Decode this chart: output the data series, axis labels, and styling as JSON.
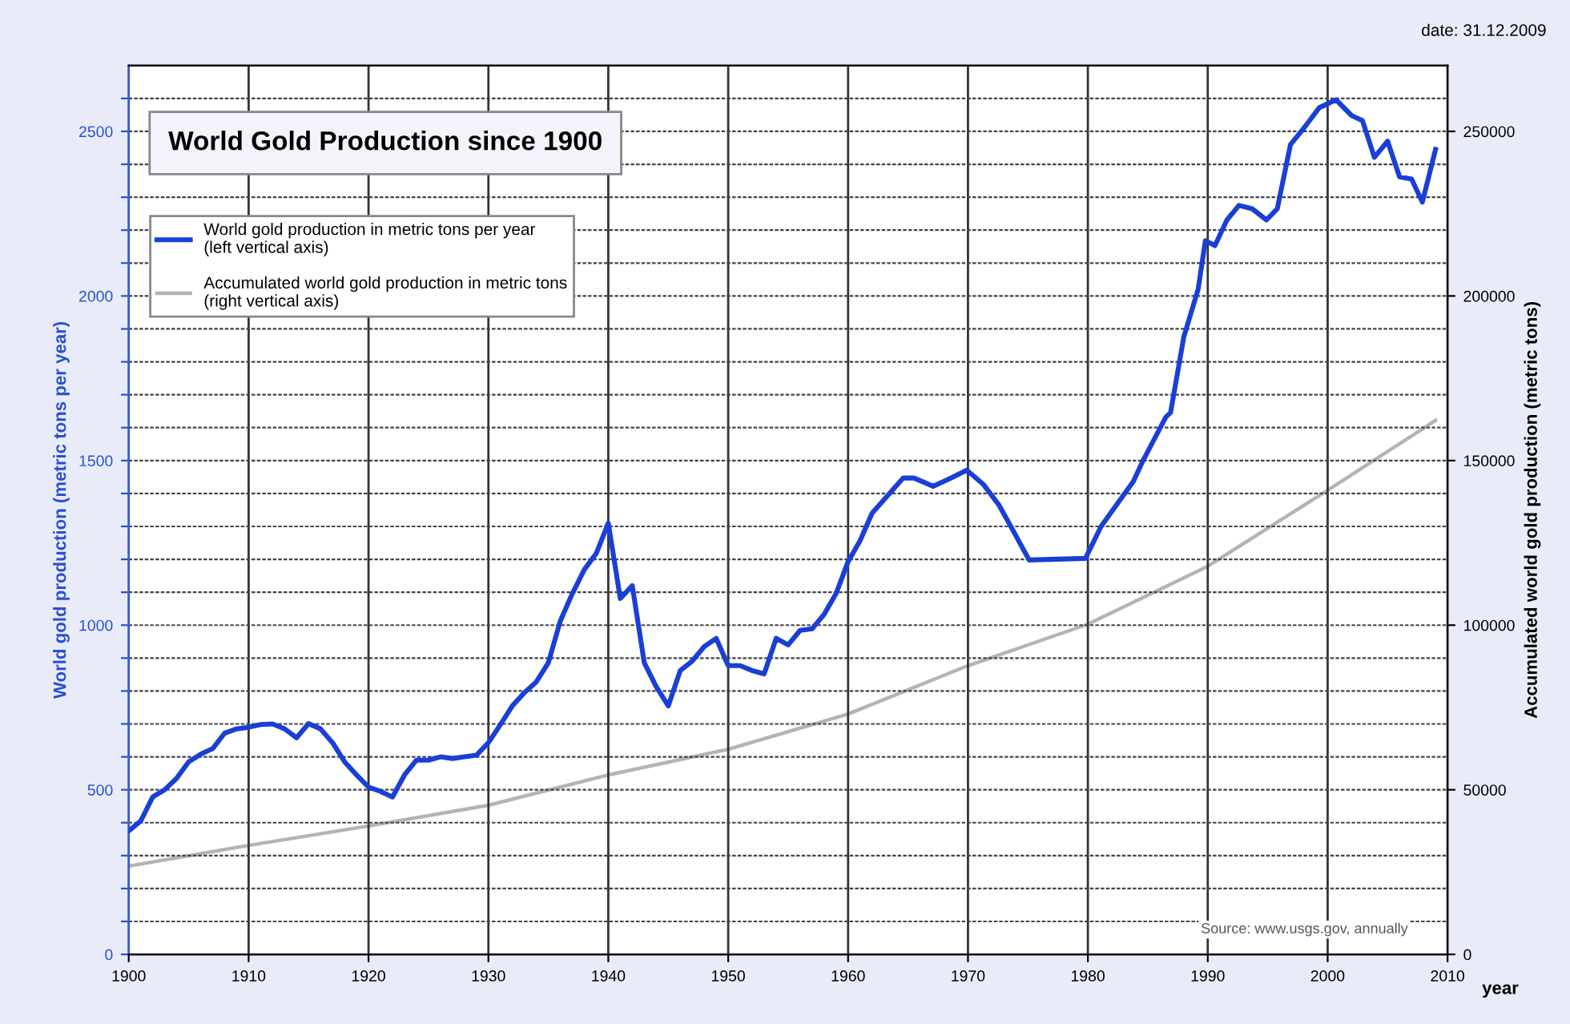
{
  "chart_data": {
    "type": "line",
    "title": "World Gold Production since 1900",
    "xlabel": "year",
    "ylabel": "World gold production (metric tons per year)",
    "y2label": "Accumulated world gold production (metric tons)",
    "annotations": [
      "date: 31.12.2009",
      "Source: www.usgs.gov, annually"
    ],
    "series": [
      {
        "name": "World gold production in metric tons per year\n(left vertical axis)",
        "color": "#1a3fd6",
        "axis": "y",
        "x": [
          1900,
          1901,
          1902,
          1903,
          1904,
          1905,
          1906,
          1907,
          1908,
          1909,
          1910,
          1911,
          1912,
          1913,
          1914,
          1915,
          1916,
          1917,
          1918,
          1919,
          1920,
          1921,
          1922,
          1923,
          1924,
          1925,
          1926,
          1927,
          1928,
          1929,
          1930,
          1931,
          1932,
          1933,
          1934,
          1935,
          1936,
          1937,
          1938,
          1939,
          1940,
          1941,
          1942,
          1943,
          1944,
          1945,
          1946,
          1947,
          1948,
          1949,
          1950,
          1951,
          1952,
          1953,
          1954,
          1955,
          1956,
          1957,
          1958,
          1959,
          1960,
          1961,
          1962,
          1964.6,
          1965.5,
          1967.1,
          1968.6,
          1969.9,
          1971.3,
          1972.6,
          1973.5,
          1975.1,
          1979.8,
          1981.1,
          1983.8,
          1984.6,
          1986.5,
          1986.9,
          1988,
          1989.2,
          1989.8,
          1990.6,
          1991.6,
          1992.6,
          1993.7,
          1994.9,
          1995.8,
          1996.9,
          1998,
          1999.3,
          2000.7,
          2002,
          2002.9,
          2003.9,
          2005,
          2006,
          2007,
          2007.9,
          2009
        ],
        "values": [
          375,
          405,
          478,
          500,
          535,
          585,
          608,
          625,
          672,
          685,
          690,
          698,
          700,
          685,
          658,
          701,
          685,
          643,
          585,
          545,
          508,
          495,
          478,
          545,
          590,
          590,
          600,
          595,
          600,
          605,
          643,
          698,
          755,
          795,
          828,
          886,
          1013,
          1096,
          1169,
          1218,
          1310,
          1081,
          1120,
          886,
          813,
          755,
          862,
          891,
          935,
          960,
          877,
          877,
          862,
          852,
          960,
          940,
          984,
          989,
          1033,
          1096,
          1193,
          1257,
          1340,
          1447,
          1447,
          1422,
          1447,
          1471,
          1427,
          1364,
          1305,
          1198,
          1203,
          1300,
          1437,
          1500,
          1632,
          1646,
          1875,
          2021,
          2168,
          2153,
          2231,
          2275,
          2265,
          2231,
          2265,
          2460,
          2509,
          2572,
          2596,
          2548,
          2533,
          2421,
          2470,
          2362,
          2355,
          2285,
          2445
        ]
      },
      {
        "name": "Accumulated world gold production in metric tons\n(right vertical axis)",
        "color": "#b4b4b4",
        "axis": "y2",
        "x": [
          1900,
          1910,
          1920,
          1930,
          1940,
          1950,
          1960,
          1970,
          1980,
          1990,
          2000,
          2009
        ],
        "values": [
          26800,
          33100,
          39000,
          45300,
          54500,
          62300,
          73000,
          87700,
          100300,
          117900,
          141000,
          162200
        ]
      }
    ],
    "xlim": [
      1900,
      2010
    ],
    "xticks": [
      1900,
      1910,
      1920,
      1930,
      1940,
      1950,
      1960,
      1970,
      1980,
      1990,
      2000,
      2010
    ],
    "ylim": [
      0,
      2700
    ],
    "yticks": [
      0,
      {
        "value": 100,
        "label": null
      },
      {
        "value": 200,
        "label": null
      },
      {
        "value": 300,
        "label": null
      },
      {
        "value": 400,
        "label": null
      },
      500,
      {
        "value": 600,
        "label": null
      },
      {
        "value": 700,
        "label": null
      },
      {
        "value": 800,
        "label": null
      },
      {
        "value": 900,
        "label": null
      },
      1000,
      {
        "value": 1100,
        "label": null
      },
      {
        "value": 1200,
        "label": null
      },
      {
        "value": 1300,
        "label": null
      },
      {
        "value": 1400,
        "label": null
      },
      1500,
      {
        "value": 1600,
        "label": null
      },
      {
        "value": 1700,
        "label": null
      },
      {
        "value": 1800,
        "label": null
      },
      {
        "value": 1900,
        "label": null
      },
      2000,
      {
        "value": 2100,
        "label": null
      },
      {
        "value": 2200,
        "label": null
      },
      {
        "value": 2300,
        "label": null
      },
      {
        "value": 2400,
        "label": null
      },
      2500,
      {
        "value": 2600,
        "label": null
      }
    ],
    "y2lim": [
      0,
      270000
    ],
    "y2ticks": [
      0,
      50000,
      100000,
      150000,
      200000,
      250000
    ],
    "grid": true,
    "legend": "top left",
    "marker": "none",
    "line_style": "solid"
  }
}
